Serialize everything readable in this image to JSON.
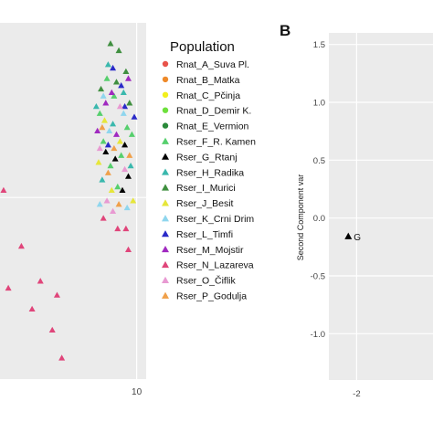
{
  "chart_data": [
    {
      "type": "scatter",
      "title": "",
      "xlabel": "",
      "ylabel": "",
      "x_ticks": [
        "10"
      ],
      "x_tick_values": [
        10
      ],
      "xlim": [
        -1.5,
        10.8
      ],
      "ylim": [
        -5.2,
        5.0
      ],
      "grid": true,
      "legend_title": "Population",
      "legend_placement": "right",
      "series": [
        {
          "name": "Rnat_A_Suva Pl.",
          "marker": "circle",
          "color": "#e8534a",
          "points": []
        },
        {
          "name": "Rnat_B_Matka",
          "marker": "circle",
          "color": "#ee8a2a",
          "points": []
        },
        {
          "name": "Rnat_C_Pčinja",
          "marker": "circle",
          "color": "#f2ef1c",
          "points": []
        },
        {
          "name": "Rnat_D_Demir K.",
          "marker": "circle",
          "color": "#6ee03c",
          "points": []
        },
        {
          "name": "Rnat_E_Vermion",
          "marker": "circle",
          "color": "#2a8a3a",
          "points": []
        },
        {
          "name": "Rser_F_R. Kamen",
          "marker": "triangle",
          "color": "#56cf6d",
          "points": [
            [
              7.2,
              1.6
            ],
            [
              8.1,
              2.9
            ],
            [
              9.2,
              2.0
            ],
            [
              8.7,
              1.2
            ],
            [
              7.5,
              3.4
            ],
            [
              6.9,
              2.4
            ],
            [
              9.6,
              1.8
            ],
            [
              8.4,
              0.3
            ],
            [
              7.8,
              0.9
            ]
          ]
        },
        {
          "name": "Rser_G_Rtanj",
          "marker": "triangle",
          "color": "#000000",
          "points": [
            [
              8.2,
              1.1
            ],
            [
              8.8,
              0.2
            ],
            [
              7.4,
              1.3
            ],
            [
              9.0,
              1.5
            ],
            [
              9.3,
              0.6
            ]
          ]
        },
        {
          "name": "Rser_H_Radika",
          "marker": "triangle",
          "color": "#3ab8ad",
          "points": [
            [
              6.6,
              2.6
            ],
            [
              7.6,
              3.8
            ],
            [
              8.9,
              3.0
            ],
            [
              9.5,
              0.9
            ],
            [
              7.1,
              0.5
            ],
            [
              8.0,
              2.1
            ]
          ]
        },
        {
          "name": "Rser_I_Murici",
          "marker": "triangle",
          "color": "#3f8f3f",
          "points": [
            [
              8.5,
              4.2
            ],
            [
              9.1,
              3.6
            ],
            [
              7.8,
              4.4
            ],
            [
              9.4,
              2.7
            ],
            [
              8.3,
              3.3
            ],
            [
              7.0,
              3.1
            ]
          ]
        },
        {
          "name": "Rser_J_Besit",
          "marker": "triangle",
          "color": "#e6e63a",
          "points": [
            [
              7.3,
              2.2
            ],
            [
              8.6,
              1.6
            ],
            [
              7.9,
              0.2
            ],
            [
              9.7,
              -0.1
            ],
            [
              6.8,
              1.0
            ]
          ]
        },
        {
          "name": "Rser_K_Crni Drim",
          "marker": "triangle",
          "color": "#8fd6ee",
          "points": [
            [
              7.7,
              1.9
            ],
            [
              8.9,
              2.4
            ],
            [
              9.2,
              -0.3
            ],
            [
              7.2,
              2.9
            ],
            [
              6.9,
              -0.2
            ]
          ]
        },
        {
          "name": "Rser_L_Timfi",
          "marker": "triangle",
          "color": "#2a2ac8",
          "points": [
            [
              8.0,
              3.7
            ],
            [
              8.7,
              3.2
            ],
            [
              9.0,
              2.6
            ],
            [
              7.6,
              1.5
            ],
            [
              9.8,
              2.3
            ]
          ]
        },
        {
          "name": "Rser_M_Mojstir",
          "marker": "triangle",
          "color": "#a02ac0",
          "points": [
            [
              7.4,
              2.7
            ],
            [
              8.3,
              1.8
            ],
            [
              9.3,
              3.4
            ],
            [
              7.9,
              3.0
            ],
            [
              6.7,
              1.9
            ]
          ]
        },
        {
          "name": "Rser_N_Lazareva",
          "marker": "triangle",
          "color": "#e0457a",
          "points": [
            [
              -1.2,
              0.2
            ],
            [
              0.3,
              -1.4
            ],
            [
              1.9,
              -2.4
            ],
            [
              2.9,
              -3.8
            ],
            [
              1.2,
              -3.2
            ],
            [
              -0.8,
              -2.6
            ],
            [
              3.7,
              -4.6
            ],
            [
              3.3,
              -2.8
            ],
            [
              9.1,
              -0.9
            ],
            [
              9.3,
              -1.5
            ],
            [
              7.2,
              -0.6
            ],
            [
              8.4,
              -0.9
            ]
          ]
        },
        {
          "name": "Rser_O_Čiflik",
          "marker": "triangle",
          "color": "#e89ad2",
          "points": [
            [
              8.0,
              -0.4
            ],
            [
              9.0,
              0.8
            ],
            [
              7.5,
              -0.1
            ],
            [
              8.6,
              2.6
            ],
            [
              6.9,
              1.4
            ]
          ]
        },
        {
          "name": "Rser_P_Godulja",
          "marker": "triangle",
          "color": "#f0a04a",
          "points": [
            [
              7.6,
              0.7
            ],
            [
              8.5,
              -0.2
            ],
            [
              9.4,
              1.2
            ],
            [
              7.1,
              2.0
            ],
            [
              8.1,
              1.4
            ]
          ]
        }
      ]
    },
    {
      "type": "scatter",
      "panel_label": "B",
      "title": "",
      "xlabel": "",
      "ylabel": "Second Component var",
      "x_ticks": [
        "-2"
      ],
      "x_tick_values": [
        -2
      ],
      "y_ticks": [
        "1.5",
        "1.0",
        "0.5",
        "0.0",
        "-0.5",
        "-1.0"
      ],
      "y_tick_values": [
        1.5,
        1.0,
        0.5,
        0.0,
        -0.5,
        -1.0
      ],
      "xlim": [
        -2.2,
        -1.45
      ],
      "ylim": [
        -1.4,
        1.6
      ],
      "grid": true,
      "series": [
        {
          "name": "G",
          "marker": "triangle",
          "color": "#000000",
          "points": [
            [
              -2.06,
              -0.16
            ]
          ],
          "label": "G"
        }
      ]
    }
  ]
}
